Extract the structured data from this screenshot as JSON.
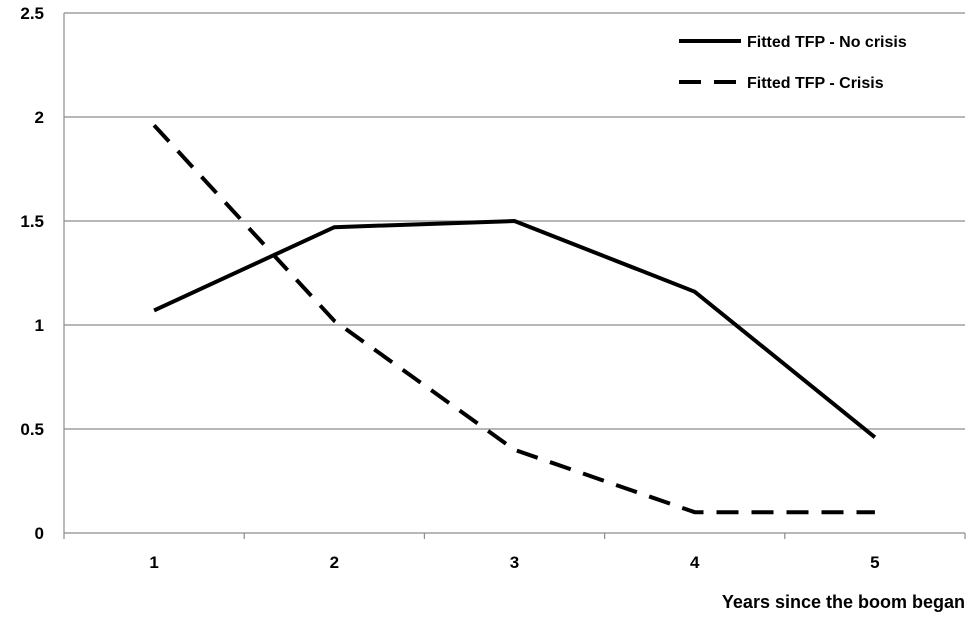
{
  "chart_data": {
    "type": "line",
    "title": "",
    "xlabel": "Years since the boom began",
    "ylabel": "",
    "categories": [
      "1",
      "2",
      "3",
      "4",
      "5"
    ],
    "ylim": [
      0,
      2.5
    ],
    "yticks": [
      "0",
      "0.5",
      "1",
      "1.5",
      "2",
      "2.5"
    ],
    "grid": "horizontal",
    "legend_position": "top-right",
    "series": [
      {
        "name": "Fitted TFP - No crisis",
        "values": [
          1.07,
          1.47,
          1.5,
          1.16,
          0.46
        ],
        "color": "#000000",
        "style": "solid"
      },
      {
        "name": "Fitted TFP - Crisis",
        "values": [
          1.96,
          1.02,
          0.4,
          0.1,
          0.1
        ],
        "color": "#000000",
        "style": "dashed"
      }
    ]
  }
}
